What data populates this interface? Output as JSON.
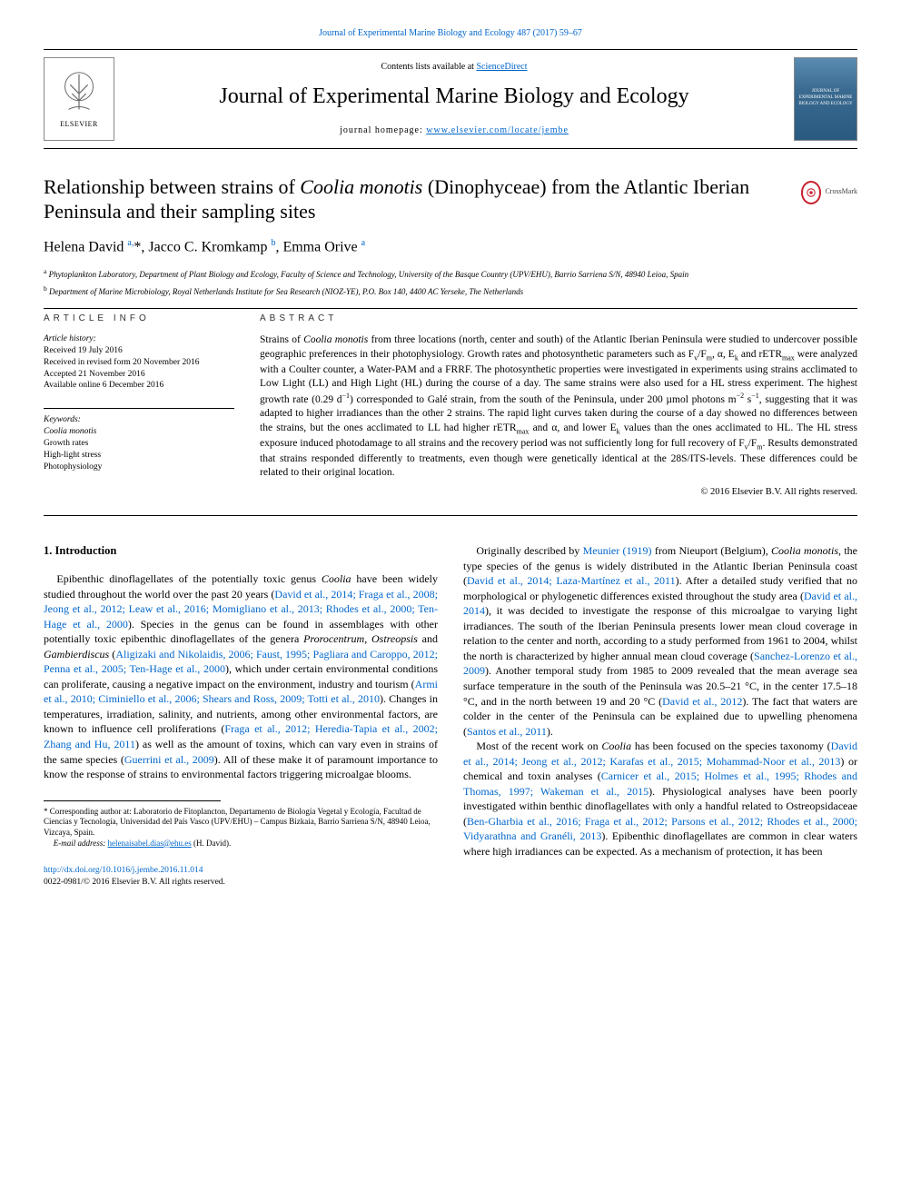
{
  "top_link": {
    "citation": "Journal of Experimental Marine Biology and Ecology 487 (2017) 59–67"
  },
  "header": {
    "contents_text": "Contents lists available at ",
    "contents_link": "ScienceDirect",
    "journal_name": "Journal of Experimental Marine Biology and Ecology",
    "homepage_label": "journal homepage: ",
    "homepage_url": "www.elsevier.com/locate/jembe",
    "elsevier_label": "ELSEVIER",
    "cover_text": "JOURNAL OF EXPERIMENTAL MARINE BIOLOGY AND ECOLOGY"
  },
  "crossmark": {
    "label": "CrossMark"
  },
  "article": {
    "title_prefix": "Relationship between strains of ",
    "title_italic": "Coolia monotis",
    "title_suffix": " (Dinophyceae) from the Atlantic Iberian Peninsula and their sampling sites",
    "authors_html": "Helena David <sup>a,</sup>*, Jacco C. Kromkamp <sup>b</sup>, Emma Orive <sup>a</sup>",
    "affiliations": [
      {
        "sup": "a",
        "text": " Phytoplankton Laboratory, Department of Plant Biology and Ecology, Faculty of Science and Technology, University of the Basque Country (UPV/EHU), Barrio Sarriena S/N, 48940 Leioa, Spain"
      },
      {
        "sup": "b",
        "text": " Department of Marine Microbiology, Royal Netherlands Institute for Sea Research (NIOZ-YE), P.O. Box 140, 4400 AC Yerseke, The Netherlands"
      }
    ]
  },
  "article_info": {
    "head": "ARTICLE INFO",
    "history_label": "Article history:",
    "history": [
      "Received 19 July 2016",
      "Received in revised form 20 November 2016",
      "Accepted 21 November 2016",
      "Available online 6 December 2016"
    ],
    "keywords_label": "Keywords:",
    "keywords": [
      "Coolia monotis",
      "Growth rates",
      "High-light stress",
      "Photophysiology"
    ]
  },
  "abstract": {
    "head": "ABSTRACT",
    "text": "Strains of <span class=\"italic\">Coolia monotis</span> from three locations (north, center and south) of the Atlantic Iberian Peninsula were studied to undercover possible geographic preferences in their photophysiology. Growth rates and photosynthetic parameters such as F<sub>v</sub>/F<sub>m</sub>, α, E<sub>k</sub> and rETR<sub>max</sub> were analyzed with a Coulter counter, a Water-PAM and a FRRF. The photosynthetic properties were investigated in experiments using strains acclimated to Low Light (LL) and High Light (HL) during the course of a day. The same strains were also used for a HL stress experiment. The highest growth rate (0.29 d<sup>−1</sup>) corresponded to Galé strain, from the south of the Peninsula, under 200 µmol photons m<sup>−2</sup> s<sup>−1</sup>, suggesting that it was adapted to higher irradiances than the other 2 strains. The rapid light curves taken during the course of a day showed no differences between the strains, but the ones acclimated to LL had higher rETR<sub>max</sub> and α, and lower E<sub>k</sub> values than the ones acclimated to HL. The HL stress exposure induced photodamage to all strains and the recovery period was not sufficiently long for full recovery of F<sub>v</sub>/F<sub>m</sub>. Results demonstrated that strains responded differently to treatments, even though were genetically identical at the 28S/ITS-levels. These differences could be related to their original location.",
    "copyright": "© 2016 Elsevier B.V. All rights reserved."
  },
  "introduction": {
    "title": "1. Introduction",
    "col1": "Epibenthic dinoflagellates of the potentially toxic genus <span class=\"italic\">Coolia</span> have been widely studied throughout the world over the past 20 years (<a href=\"#\">David et al., 2014; Fraga et al., 2008; Jeong et al., 2012; Leaw et al., 2016; Momigliano et al., 2013; Rhodes et al., 2000; Ten-Hage et al., 2000</a>). Species in the genus can be found in assemblages with other potentially toxic epibenthic dinoflagellates of the genera <span class=\"italic\">Prorocentrum</span>, <span class=\"italic\">Ostreopsis</span> and <span class=\"italic\">Gambierdiscus</span> (<a href=\"#\">Aligizaki and Nikolaidis, 2006; Faust, 1995; Pagliara and Caroppo, 2012; Penna et al., 2005; Ten-Hage et al., 2000</a>), which under certain environmental conditions can proliferate, causing a negative impact on the environment, industry and tourism (<a href=\"#\">Armi et al., 2010; Ciminiello et al., 2006; Shears and Ross, 2009; Totti et al., 2010</a>). Changes in temperatures, irradiation, salinity, and nutrients, among other environmental factors, are known to influence cell proliferations (<a href=\"#\">Fraga et al., 2012; Heredia-Tapia et al., 2002; Zhang and Hu, 2011</a>) as well as the amount of toxins, which can vary even in strains of the same species (<a href=\"#\">Guerrini et al., 2009</a>). All of these make it of paramount importance to know the response of strains to environmental factors triggering microalgae blooms.",
    "col2_p1": "Originally described by <a href=\"#\">Meunier (1919)</a> from Nieuport (Belgium), <span class=\"italic\">Coolia monotis</span>, the type species of the genus is widely distributed in the Atlantic Iberian Peninsula coast (<a href=\"#\">David et al., 2014; Laza-Martínez et al., 2011</a>). After a detailed study verified that no morphological or phylogenetic differences existed throughout the study area (<a href=\"#\">David et al., 2014</a>), it was decided to investigate the response of this microalgae to varying light irradiances. The south of the Iberian Peninsula presents lower mean cloud coverage in relation to the center and north, according to a study performed from 1961 to 2004, whilst the north is characterized by higher annual mean cloud coverage (<a href=\"#\">Sanchez-Lorenzo et al., 2009</a>). Another temporal study from 1985 to 2009 revealed that the mean average sea surface temperature in the south of the Peninsula was 20.5–21 °C, in the center 17.5–18 °C, and in the north between 19 and 20 °C (<a href=\"#\">David et al., 2012</a>). The fact that waters are colder in the center of the Peninsula can be explained due to upwelling phenomena (<a href=\"#\">Santos et al., 2011</a>).",
    "col2_p2": "Most of the recent work on <span class=\"italic\">Coolia</span> has been focused on the species taxonomy (<a href=\"#\">David et al., 2014; Jeong et al., 2012; Karafas et al., 2015; Mohammad-Noor et al., 2013</a>) or chemical and toxin analyses (<a href=\"#\">Carnicer et al., 2015; Holmes et al., 1995; Rhodes and Thomas, 1997; Wakeman et al., 2015</a>). Physiological analyses have been poorly investigated within benthic dinoflagellates with only a handful related to Ostreopsidaceae (<a href=\"#\">Ben-Gharbia et al., 2016; Fraga et al., 2012; Parsons et al., 2012; Rhodes et al., 2000; Vidyarathna and Granéli, 2013</a>). Epibenthic dinoflagellates are common in clear waters where high irradiances can be expected. As a mechanism of protection, it has been"
  },
  "footnote": {
    "corresponding": "* Corresponding author at: Laboratorio de Fitoplancton, Departamento de Biología Vegetal y Ecología, Facultad de Ciencias y Tecnología, Universidad del País Vasco (UPV/EHU) – Campus Bizkaia, Barrio Sarriena S/N, 48940 Leioa, Vizcaya, Spain.",
    "email_label": "E-mail address: ",
    "email": "helenaisabel.dias@ehu.es",
    "email_author": " (H. David)."
  },
  "footer": {
    "doi": "http://dx.doi.org/10.1016/j.jembe.2016.11.014",
    "issn": "0022-0981/© 2016 Elsevier B.V. All rights reserved."
  },
  "colors": {
    "link": "#0066cc",
    "text": "#000000",
    "crossmark_red": "#c8202f",
    "cover_gradient_top": "#5a8bb0",
    "cover_gradient_bottom": "#2a5a80"
  },
  "typography": {
    "body_font": "Times New Roman",
    "title_fontsize_pt": 22,
    "journal_name_fontsize_pt": 24,
    "authors_fontsize_pt": 16,
    "body_fontsize_pt": 12,
    "abstract_fontsize_pt": 11.5,
    "footnote_fontsize_pt": 9
  }
}
